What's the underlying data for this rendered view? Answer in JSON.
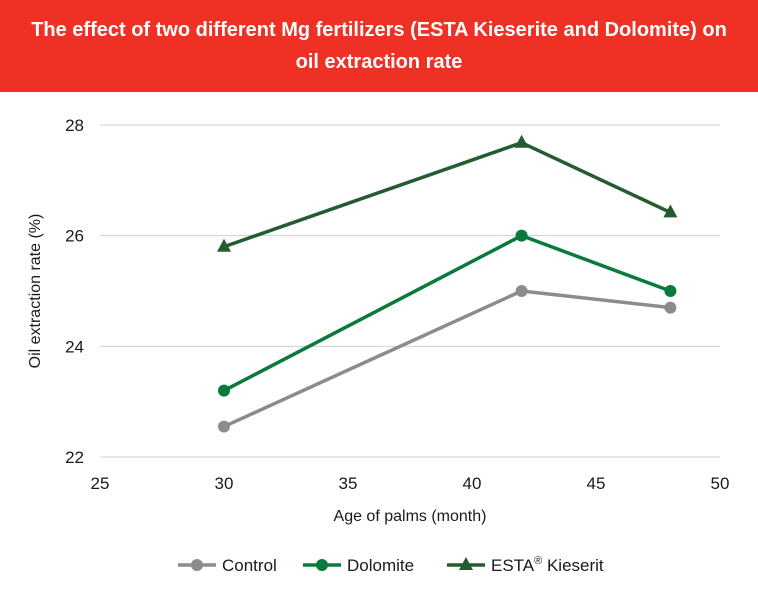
{
  "header": {
    "title": "The effect of two different Mg fertilizers (ESTA Kieserite and Dolomite) on oil extraction rate"
  },
  "chart_data": {
    "type": "line",
    "title": "The effect of two different Mg fertilizers (ESTA Kieserite and Dolomite) on oil extraction rate",
    "xlabel": "Age of palms (month)",
    "ylabel": "Oil extraction rate (%)",
    "xlim": [
      25,
      50
    ],
    "ylim": [
      22,
      28
    ],
    "xticks": [
      25,
      30,
      35,
      40,
      45,
      50
    ],
    "yticks": [
      22,
      24,
      26,
      28
    ],
    "grid": "horizontal",
    "legend_position": "bottom",
    "x": [
      30,
      42,
      48
    ],
    "series": [
      {
        "name": "Control",
        "marker": "circle",
        "color": "#8c8c8c",
        "values": [
          22.55,
          25.0,
          24.7
        ]
      },
      {
        "name": "Dolomite",
        "marker": "circle",
        "color": "#0a7a3c",
        "values": [
          23.2,
          26.0,
          25.0
        ]
      },
      {
        "name": "ESTA Kieserit",
        "name_superscript_after": "ESTA",
        "superscript": "®",
        "marker": "triangle",
        "color": "#245c30",
        "values": [
          25.8,
          27.68,
          26.42
        ]
      }
    ]
  }
}
